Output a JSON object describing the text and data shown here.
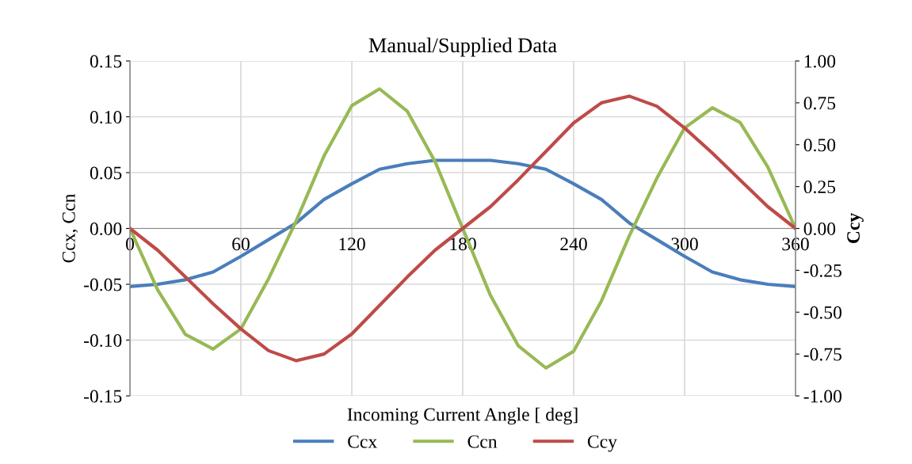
{
  "chart_data": {
    "type": "line",
    "title": "Manual/Supplied Data",
    "xlabel": "Incoming Current Angle [ deg]",
    "ylabel": "Ccx, Ccn",
    "y2label": "Ccy",
    "x": [
      0,
      15,
      30,
      45,
      60,
      75,
      90,
      105,
      120,
      135,
      150,
      165,
      180,
      195,
      210,
      225,
      240,
      255,
      270,
      285,
      300,
      315,
      330,
      345,
      360
    ],
    "series": [
      {
        "name": "Ccx",
        "color": "#4a7ebb",
        "values": [
          -0.052,
          -0.05,
          -0.046,
          -0.039,
          -0.025,
          -0.01,
          0.005,
          0.026,
          0.04,
          0.053,
          0.058,
          0.061,
          0.061,
          0.061,
          0.058,
          0.053,
          0.04,
          0.026,
          0.005,
          -0.01,
          -0.025,
          -0.039,
          -0.046,
          -0.05,
          -0.052
        ]
      },
      {
        "name": "Ccn",
        "color": "#98b954",
        "values": [
          0,
          -0.055,
          -0.095,
          -0.108,
          -0.09,
          -0.045,
          0.007,
          0.065,
          0.11,
          0.125,
          0.105,
          0.06,
          0,
          -0.06,
          -0.105,
          -0.125,
          -0.11,
          -0.065,
          -0.007,
          0.045,
          0.09,
          0.108,
          0.095,
          0.055,
          0
        ]
      },
      {
        "name": "Ccy",
        "color": "#be4b48",
        "axis": "y2",
        "values": [
          0,
          -0.13,
          -0.29,
          -0.45,
          -0.6,
          -0.73,
          -0.79,
          -0.75,
          -0.63,
          -0.46,
          -0.29,
          -0.13,
          0,
          0.13,
          0.29,
          0.46,
          0.63,
          0.75,
          0.79,
          0.73,
          0.6,
          0.45,
          0.29,
          0.13,
          0
        ]
      }
    ],
    "xlim": [
      0,
      360
    ],
    "xticks": [
      0,
      60,
      120,
      180,
      240,
      300,
      360
    ],
    "ylim": [
      -0.15,
      0.15
    ],
    "yticks": [
      {
        "value": -0.15,
        "label": "-0.15"
      },
      {
        "value": -0.1,
        "label": "-0.10"
      },
      {
        "value": -0.05,
        "label": "-0.05"
      },
      {
        "value": 0,
        "label": "0.00"
      },
      {
        "value": 0.05,
        "label": "0.05"
      },
      {
        "value": 0.1,
        "label": "0.10"
      },
      {
        "value": 0.15,
        "label": "0.15"
      }
    ],
    "y2lim": [
      -1,
      1
    ],
    "y2ticks": [
      {
        "value": -1,
        "label": "-1.00"
      },
      {
        "value": -0.75,
        "label": "-0.75"
      },
      {
        "value": -0.5,
        "label": "-0.50"
      },
      {
        "value": -0.25,
        "label": "-0.25"
      },
      {
        "value": 0,
        "label": "0.00"
      },
      {
        "value": 0.25,
        "label": "0.25"
      },
      {
        "value": 0.5,
        "label": "0.50"
      },
      {
        "value": 0.75,
        "label": "0.75"
      },
      {
        "value": 1,
        "label": "1.00"
      }
    ],
    "grid": true,
    "legend": "bottom",
    "marker": "none",
    "line_style": "solid"
  }
}
